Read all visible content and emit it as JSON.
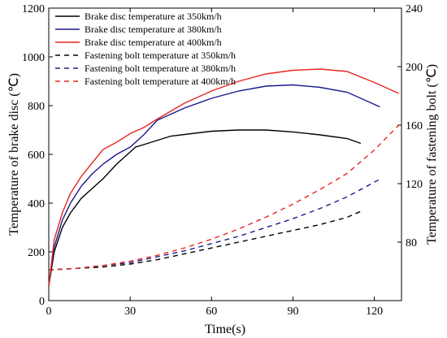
{
  "chart_data": {
    "type": "line",
    "xlabel": "Time(s)",
    "ylabel_left": "Temperature of brake disc (℃)",
    "ylabel_right": "Temperature of fastening bolt (℃)",
    "xlim": [
      0,
      130
    ],
    "ylim_left": [
      0,
      1200
    ],
    "ylim_right": [
      40,
      240
    ],
    "x_ticks": [
      "0",
      "30",
      "60",
      "90",
      "120"
    ],
    "y_left_ticks": [
      "0",
      "200",
      "400",
      "600",
      "800",
      "1000",
      "1200"
    ],
    "y_right_ticks": [
      "80",
      "120",
      "160",
      "200",
      "240"
    ],
    "grid": false,
    "legend_position": "top-left",
    "series": [
      {
        "name": "Brake disc temperature at 350km/h",
        "axis": "left",
        "color": "#000000",
        "dash": "solid",
        "x": [
          0,
          2,
          5,
          8,
          12,
          16,
          20,
          25,
          30,
          32,
          35,
          45,
          60,
          70,
          80,
          90,
          100,
          110,
          115
        ],
        "y": [
          60,
          200,
          300,
          360,
          420,
          460,
          500,
          560,
          610,
          630,
          640,
          675,
          695,
          700,
          700,
          692,
          680,
          665,
          645
        ]
      },
      {
        "name": "Brake disc temperature at 380km/h",
        "axis": "left",
        "color": "#1a1a8c",
        "dash": "solid",
        "x": [
          0,
          2,
          5,
          8,
          12,
          16,
          20,
          25,
          30,
          35,
          40,
          50,
          60,
          70,
          80,
          90,
          100,
          110,
          122
        ],
        "y": [
          60,
          220,
          330,
          400,
          470,
          520,
          560,
          600,
          630,
          680,
          740,
          790,
          830,
          860,
          880,
          885,
          875,
          855,
          795
        ]
      },
      {
        "name": "Brake disc temperature at 400km/h",
        "axis": "left",
        "color": "#e8261f",
        "dash": "solid",
        "x": [
          0,
          2,
          5,
          8,
          12,
          16,
          20,
          25,
          30,
          35,
          40,
          50,
          60,
          70,
          80,
          90,
          100,
          110,
          120,
          129
        ],
        "y": [
          60,
          250,
          360,
          440,
          510,
          565,
          620,
          650,
          685,
          710,
          745,
          810,
          860,
          900,
          930,
          945,
          950,
          940,
          895,
          850
        ]
      },
      {
        "name": "Fastening bolt temperature at 350km/h",
        "axis": "right",
        "color": "#000000",
        "dash": "dashed",
        "x": [
          0,
          10,
          20,
          30,
          40,
          50,
          60,
          70,
          80,
          90,
          100,
          110,
          115
        ],
        "y": [
          61,
          62,
          63,
          65,
          68,
          72,
          76,
          80,
          84,
          88,
          92,
          97,
          101
        ]
      },
      {
        "name": "Fastening bolt temperature at 380km/h",
        "axis": "right",
        "color": "#1a1a8c",
        "dash": "dashed",
        "x": [
          0,
          10,
          20,
          30,
          40,
          50,
          60,
          70,
          80,
          90,
          100,
          110,
          122
        ],
        "y": [
          61,
          62,
          64,
          66,
          70,
          74,
          79,
          84,
          90,
          96,
          103,
          111,
          123
        ]
      },
      {
        "name": "Fastening bolt temperature at 400km/h",
        "axis": "right",
        "color": "#e8261f",
        "dash": "dashed",
        "x": [
          0,
          10,
          20,
          30,
          40,
          50,
          60,
          70,
          80,
          90,
          100,
          110,
          120,
          129
        ],
        "y": [
          61,
          62,
          64,
          67,
          71,
          76,
          82,
          89,
          97,
          106,
          116,
          127,
          143,
          160
        ]
      }
    ]
  }
}
